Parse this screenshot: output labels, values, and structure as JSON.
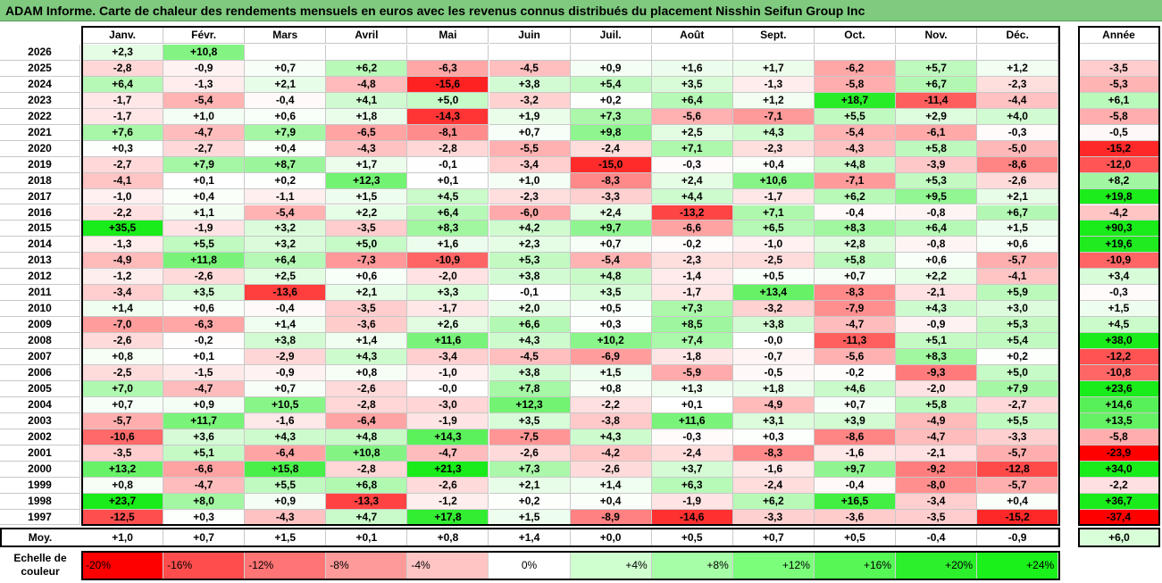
{
  "title": "ADAM Informe. Carte de chaleur des rendements mensuels en euros avec les revenus connus distribués du placement Nisshin Seifun Group Inc",
  "chart_data": {
    "type": "heatmap",
    "months": [
      "Janv.",
      "Févr.",
      "Mars",
      "Avril",
      "Mai",
      "Juin",
      "Juil.",
      "Août",
      "Sept.",
      "Oct.",
      "Nov.",
      "Déc."
    ],
    "year_header": "Année",
    "rows": [
      {
        "year": "2026",
        "values": [
          "+2,3",
          "+10,8",
          "",
          "",
          "",
          "",
          "",
          "",
          "",
          "",
          "",
          ""
        ],
        "annual": ""
      },
      {
        "year": "2025",
        "values": [
          "-2,8",
          "-0,9",
          "+0,7",
          "+6,2",
          "-6,3",
          "-4,5",
          "+0,9",
          "+1,6",
          "+1,7",
          "-6,2",
          "+5,7",
          "+1,2"
        ],
        "annual": "-3,5"
      },
      {
        "year": "2024",
        "values": [
          "+6,4",
          "-1,3",
          "+2,1",
          "-4,8",
          "-15,6",
          "+3,8",
          "+5,4",
          "+3,5",
          "-1,3",
          "-5,8",
          "+6,7",
          "-2,3"
        ],
        "annual": "-5,3"
      },
      {
        "year": "2023",
        "values": [
          "-1,7",
          "-5,4",
          "-0,4",
          "+4,1",
          "+5,0",
          "-3,2",
          "+0,2",
          "+6,4",
          "+1,2",
          "+18,7",
          "-11,4",
          "-4,4"
        ],
        "annual": "+6,1"
      },
      {
        "year": "2022",
        "values": [
          "-1,7",
          "+1,0",
          "+0,6",
          "+1,8",
          "-14,3",
          "+1,9",
          "+7,3",
          "-5,6",
          "-7,1",
          "+5,5",
          "+2,9",
          "+4,0"
        ],
        "annual": "-5,8"
      },
      {
        "year": "2021",
        "values": [
          "+7,6",
          "-4,7",
          "+7,9",
          "-6,5",
          "-8,1",
          "+0,7",
          "+9,8",
          "+2,5",
          "+4,3",
          "-5,4",
          "-6,1",
          "-0,3"
        ],
        "annual": "-0,5"
      },
      {
        "year": "2020",
        "values": [
          "+0,3",
          "-2,7",
          "+0,4",
          "-4,3",
          "-2,8",
          "-5,5",
          "-2,4",
          "+7,1",
          "-2,3",
          "-4,3",
          "+5,8",
          "-5,0"
        ],
        "annual": "-15,2"
      },
      {
        "year": "2019",
        "values": [
          "-2,7",
          "+7,9",
          "+8,7",
          "+1,7",
          "-0,1",
          "-3,4",
          "-15,0",
          "-0,3",
          "+0,4",
          "+4,8",
          "-3,9",
          "-8,6"
        ],
        "annual": "-12,0"
      },
      {
        "year": "2018",
        "values": [
          "-4,1",
          "+0,1",
          "+0,2",
          "+12,3",
          "+0,1",
          "+1,0",
          "-8,3",
          "+2,4",
          "+10,6",
          "-7,1",
          "+5,3",
          "-2,6"
        ],
        "annual": "+8,2"
      },
      {
        "year": "2017",
        "values": [
          "-1,0",
          "+0,4",
          "-1,1",
          "+1,5",
          "+4,5",
          "-2,3",
          "-3,3",
          "+4,4",
          "-1,7",
          "+6,2",
          "+9,5",
          "+2,1"
        ],
        "annual": "+19,8"
      },
      {
        "year": "2016",
        "values": [
          "-2,2",
          "+1,1",
          "-5,4",
          "+2,2",
          "+6,4",
          "-6,0",
          "+2,4",
          "-13,2",
          "+7,1",
          "-0,4",
          "-0,8",
          "+6,7"
        ],
        "annual": "-4,2"
      },
      {
        "year": "2015",
        "values": [
          "+35,5",
          "-1,9",
          "+3,2",
          "-3,5",
          "+8,3",
          "+4,2",
          "+9,7",
          "-6,6",
          "+6,5",
          "+8,3",
          "+6,4",
          "+1,5"
        ],
        "annual": "+90,3"
      },
      {
        "year": "2014",
        "values": [
          "-1,3",
          "+5,5",
          "+3,2",
          "+5,0",
          "+1,6",
          "+2,3",
          "+0,7",
          "-0,2",
          "-1,0",
          "+2,8",
          "-0,8",
          "+0,6"
        ],
        "annual": "+19,6"
      },
      {
        "year": "2013",
        "values": [
          "-4,9",
          "+11,8",
          "+6,4",
          "-7,3",
          "-10,9",
          "+5,3",
          "-5,4",
          "-2,3",
          "-2,5",
          "+5,8",
          "+0,6",
          "-5,7"
        ],
        "annual": "-10,9"
      },
      {
        "year": "2012",
        "values": [
          "-1,2",
          "-2,6",
          "+2,5",
          "+0,6",
          "-2,0",
          "+3,8",
          "+4,8",
          "-1,4",
          "+0,5",
          "+0,7",
          "+2,2",
          "-4,1"
        ],
        "annual": "+3,4"
      },
      {
        "year": "2011",
        "values": [
          "-3,4",
          "+3,5",
          "-13,6",
          "+2,1",
          "+3,3",
          "-0,1",
          "+3,5",
          "-1,7",
          "+13,4",
          "-8,3",
          "-2,1",
          "+5,9"
        ],
        "annual": "-0,3"
      },
      {
        "year": "2010",
        "values": [
          "+1,4",
          "+0,6",
          "-0,4",
          "-3,5",
          "-1,7",
          "+2,0",
          "+0,5",
          "+7,3",
          "-3,2",
          "-7,9",
          "+4,3",
          "+3,0"
        ],
        "annual": "+1,5"
      },
      {
        "year": "2009",
        "values": [
          "-7,0",
          "-6,3",
          "+1,4",
          "-3,6",
          "+2,6",
          "+6,6",
          "+0,3",
          "+8,5",
          "+3,8",
          "-4,7",
          "-0,9",
          "+5,3"
        ],
        "annual": "+4,5"
      },
      {
        "year": "2008",
        "values": [
          "-2,6",
          "-0,2",
          "+3,8",
          "+1,4",
          "+11,6",
          "+4,3",
          "+10,2",
          "+7,4",
          "-0,0",
          "-11,3",
          "+5,1",
          "+5,4"
        ],
        "annual": "+38,0"
      },
      {
        "year": "2007",
        "values": [
          "+0,8",
          "+0,1",
          "-2,9",
          "+4,3",
          "-3,4",
          "-4,5",
          "-6,9",
          "-1,8",
          "-0,7",
          "-5,6",
          "+8,3",
          "+0,2"
        ],
        "annual": "-12,2"
      },
      {
        "year": "2006",
        "values": [
          "-2,5",
          "-1,5",
          "-0,9",
          "+0,8",
          "-1,0",
          "+3,8",
          "+1,5",
          "-5,9",
          "-0,5",
          "-0,2",
          "-9,3",
          "+5,0"
        ],
        "annual": "-10,8"
      },
      {
        "year": "2005",
        "values": [
          "+7,0",
          "-4,7",
          "+0,7",
          "-2,6",
          "-0,0",
          "+7,8",
          "+0,8",
          "+1,3",
          "+1,8",
          "+4,6",
          "-2,0",
          "+7,9"
        ],
        "annual": "+23,6"
      },
      {
        "year": "2004",
        "values": [
          "+0,7",
          "+0,9",
          "+10,5",
          "-2,8",
          "-3,0",
          "+12,3",
          "-2,2",
          "+0,1",
          "-4,9",
          "+0,7",
          "+5,8",
          "-2,7"
        ],
        "annual": "+14,6"
      },
      {
        "year": "2003",
        "values": [
          "-5,7",
          "+11,7",
          "-1,6",
          "-6,4",
          "-1,9",
          "+3,5",
          "-3,8",
          "+11,6",
          "+3,1",
          "+3,9",
          "-4,9",
          "+5,5"
        ],
        "annual": "+13,5"
      },
      {
        "year": "2002",
        "values": [
          "-10,6",
          "+3,6",
          "+4,3",
          "+4,8",
          "+14,3",
          "-7,5",
          "+4,3",
          "-0,3",
          "+0,3",
          "-8,6",
          "-4,7",
          "-3,3"
        ],
        "annual": "-5,8"
      },
      {
        "year": "2001",
        "values": [
          "-3,5",
          "+5,1",
          "-6,4",
          "+10,8",
          "-4,7",
          "-2,6",
          "-4,2",
          "-2,4",
          "-8,3",
          "-1,6",
          "-2,1",
          "-5,7"
        ],
        "annual": "-23,9"
      },
      {
        "year": "2000",
        "values": [
          "+13,2",
          "-6,6",
          "+15,8",
          "-2,8",
          "+21,3",
          "+7,3",
          "-2,6",
          "+3,7",
          "-1,6",
          "+9,7",
          "-9,2",
          "-12,8"
        ],
        "annual": "+34,0"
      },
      {
        "year": "1999",
        "values": [
          "+0,8",
          "-4,7",
          "+5,5",
          "+6,8",
          "-2,6",
          "+2,1",
          "+1,4",
          "+6,3",
          "-2,4",
          "-0,4",
          "-8,0",
          "-5,7"
        ],
        "annual": "-2,2"
      },
      {
        "year": "1998",
        "values": [
          "+23,7",
          "+8,0",
          "+0,9",
          "-13,3",
          "-1,2",
          "+0,2",
          "+0,4",
          "-1,9",
          "+6,2",
          "+16,5",
          "-3,4",
          "+0,4"
        ],
        "annual": "+36,7"
      },
      {
        "year": "1997",
        "values": [
          "-12,5",
          "+0,3",
          "-4,3",
          "+4,7",
          "+17,8",
          "+1,5",
          "-8,9",
          "-14,6",
          "-3,3",
          "-3,6",
          "-3,5",
          "-15,2"
        ],
        "annual": "-37,4"
      }
    ],
    "average": {
      "label": "Moy.",
      "values": [
        "+1,0",
        "+0,7",
        "+1,5",
        "+0,1",
        "+0,8",
        "+1,4",
        "+0,0",
        "+0,5",
        "+0,7",
        "+0,5",
        "-0,4",
        "-0,9"
      ],
      "annual": "+6,0"
    },
    "legend": {
      "label_line1": "Echelle de",
      "label_line2": "couleur",
      "stops": [
        "-20%",
        "-16%",
        "-12%",
        "-8%",
        "-4%",
        "0%",
        "+4%",
        "+8%",
        "+12%",
        "+16%",
        "+20%",
        "+24%"
      ],
      "stop_values": [
        -20,
        -16,
        -12,
        -8,
        -4,
        0,
        4,
        8,
        12,
        16,
        20,
        24
      ],
      "colors": [
        "#ff0000",
        "#ff4d4d",
        "#ff7474",
        "#ff9a9a",
        "#ffc4c4",
        "#ffffff",
        "#cfffcf",
        "#a6ffa6",
        "#7bff7b",
        "#55f855",
        "#2cf02c",
        "#1af01a"
      ]
    },
    "colors": {
      "title_bg": "#7fca7f",
      "negative_max": "#ff0000",
      "positive_max": "#00e800"
    }
  }
}
